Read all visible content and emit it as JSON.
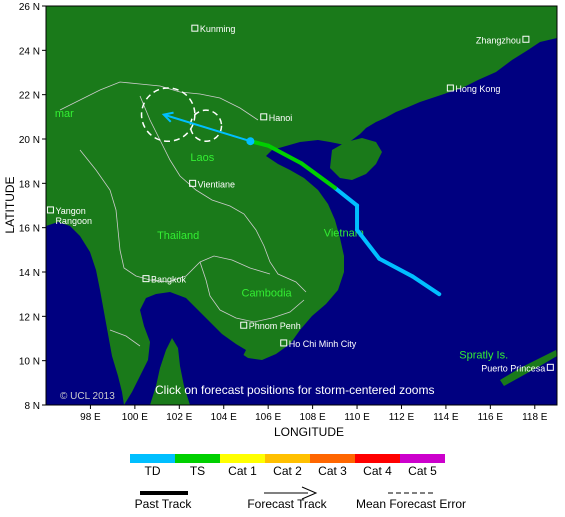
{
  "axes": {
    "ylabel": "LATITUDE",
    "xlabel": "LONGITUDE",
    "lat_ticks": [
      "26 N",
      "24 N",
      "22 N",
      "20 N",
      "18 N",
      "16 N",
      "14 N",
      "12 N",
      "10 N",
      "8 N"
    ],
    "lon_ticks": [
      "98 E",
      "100 E",
      "102 E",
      "104 E",
      "106 E",
      "108 E",
      "110 E",
      "112 E",
      "114 E",
      "116 E",
      "118 E"
    ]
  },
  "places": [
    {
      "name": "Kunming",
      "lon": 102.7,
      "lat": 25.0,
      "marker": true
    },
    {
      "name": "Hanoi",
      "lon": 105.8,
      "lat": 21.0,
      "marker": true
    },
    {
      "name": "Zhangzhou",
      "lon": 117.6,
      "lat": 24.5,
      "marker": true
    },
    {
      "name": "Hong Kong",
      "lon": 114.2,
      "lat": 22.3,
      "marker": true
    },
    {
      "name": "Vientiane",
      "lon": 102.6,
      "lat": 18.0,
      "marker": true
    },
    {
      "name": "Yangon",
      "lon": 96.2,
      "lat": 16.8,
      "marker": true
    },
    {
      "name": "Rangoon",
      "lon": 96.2,
      "lat": 16.8,
      "marker": false
    },
    {
      "name": "Bangkok",
      "lon": 100.5,
      "lat": 13.7,
      "marker": true
    },
    {
      "name": "Phnom Penh",
      "lon": 104.9,
      "lat": 11.6,
      "marker": true
    },
    {
      "name": "Ho Chi Minh City",
      "lon": 106.7,
      "lat": 10.8,
      "marker": true
    },
    {
      "name": "Puerto Princesa",
      "lon": 118.7,
      "lat": 9.7,
      "marker": true
    }
  ],
  "regions": [
    {
      "name": "mar",
      "lon": 96.4,
      "lat": 21.0
    },
    {
      "name": "Laos",
      "lon": 102.5,
      "lat": 19.0
    },
    {
      "name": "Thailand",
      "lon": 101.0,
      "lat": 15.5
    },
    {
      "name": "Vietnam",
      "lon": 108.5,
      "lat": 15.6
    },
    {
      "name": "Cambodia",
      "lon": 104.8,
      "lat": 12.9
    },
    {
      "name": "Spratly Is.",
      "lon": 114.6,
      "lat": 10.1
    }
  ],
  "past_track": [
    {
      "lon": 113.7,
      "lat": 13.0,
      "cat": "TD"
    },
    {
      "lon": 112.5,
      "lat": 13.8,
      "cat": "TD"
    },
    {
      "lon": 111.0,
      "lat": 14.6,
      "cat": "TD"
    },
    {
      "lon": 110.0,
      "lat": 15.9,
      "cat": "TD"
    },
    {
      "lon": 110.0,
      "lat": 17.0,
      "cat": "TD"
    },
    {
      "lon": 109.0,
      "lat": 17.8,
      "cat": "TS"
    },
    {
      "lon": 107.5,
      "lat": 18.9,
      "cat": "TS"
    },
    {
      "lon": 106.0,
      "lat": 19.7,
      "cat": "TS"
    },
    {
      "lon": 105.2,
      "lat": 19.9,
      "cat": "TD"
    }
  ],
  "forecast_track": [
    {
      "lon": 105.2,
      "lat": 19.9
    },
    {
      "lon": 101.3,
      "lat": 21.1
    }
  ],
  "error_circles": [
    {
      "lon": 101.5,
      "lat": 21.1,
      "r_deg": 1.2
    },
    {
      "lon": 103.2,
      "lat": 20.6,
      "r_deg": 0.7
    }
  ],
  "watermark": "© UCL 2013",
  "click_note": "Click on forecast positions for storm-centered zooms",
  "legend": {
    "categories": [
      {
        "label": "TD",
        "color": "#00bfff"
      },
      {
        "label": "TS",
        "color": "#00d000"
      },
      {
        "label": "Cat 1",
        "color": "#ffff00"
      },
      {
        "label": "Cat 2",
        "color": "#ffc000"
      },
      {
        "label": "Cat 3",
        "color": "#ff6600"
      },
      {
        "label": "Cat 4",
        "color": "#ff0000"
      },
      {
        "label": "Cat 5",
        "color": "#cc00cc"
      }
    ],
    "past_track_label": "Past Track",
    "forecast_track_label": "Forecast Track",
    "error_label": "Mean Forecast Error"
  },
  "colors": {
    "ocean": "#000080",
    "land": "#1a7a1a",
    "border": "#cccccc",
    "region_text": "#33ee33",
    "forecast": "#00bfff"
  }
}
